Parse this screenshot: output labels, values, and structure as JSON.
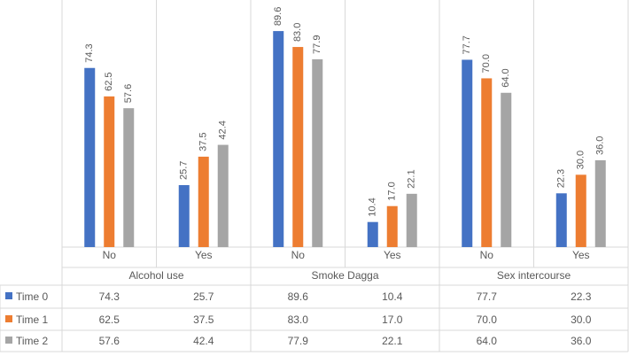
{
  "chart_data": {
    "type": "bar",
    "groups": [
      "Alcohol use",
      "Smoke Dagga",
      "Sex intercourse"
    ],
    "categories": [
      "No",
      "Yes",
      "No",
      "Yes",
      "No",
      "Yes"
    ],
    "series": [
      {
        "name": "Time 0",
        "color": "#4472c4",
        "values": [
          74.3,
          25.7,
          89.6,
          10.4,
          77.7,
          22.3
        ]
      },
      {
        "name": "Time 1",
        "color": "#ed7d31",
        "values": [
          62.5,
          37.5,
          83.0,
          17.0,
          70.0,
          30.0
        ]
      },
      {
        "name": "Time 2",
        "color": "#a5a5a5",
        "values": [
          57.6,
          42.4,
          77.9,
          22.1,
          64.0,
          36.0
        ]
      }
    ],
    "ylim": [
      0,
      90
    ],
    "data_labels": true,
    "data_table": true,
    "legend": "data-table"
  }
}
